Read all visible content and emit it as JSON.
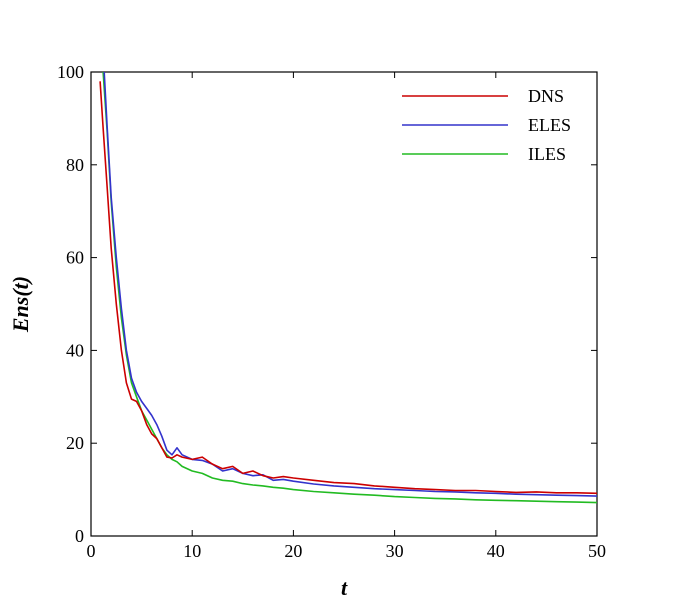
{
  "chart_data": {
    "type": "line",
    "title": "",
    "xlabel": "t",
    "ylabel": "Ens(t)",
    "xlim": [
      0,
      50
    ],
    "ylim": [
      0,
      100
    ],
    "xticks": [
      0,
      10,
      20,
      30,
      40,
      50
    ],
    "yticks": [
      0,
      20,
      40,
      60,
      80,
      100
    ],
    "grid": false,
    "legend_position": "top-right",
    "series": [
      {
        "name": "DNS",
        "color": "#cc0000",
        "x": [
          0.9,
          1.2,
          1.6,
          2.0,
          2.5,
          3.0,
          3.5,
          4.0,
          4.5,
          5.0,
          5.5,
          6.0,
          6.5,
          7.0,
          7.5,
          8.0,
          8.5,
          9.0,
          10.0,
          11.0,
          12.0,
          13.0,
          14.0,
          15.0,
          16.0,
          17.0,
          18.0,
          19.0,
          20.0,
          22.0,
          24.0,
          26.0,
          28.0,
          30.0,
          32.0,
          34.0,
          36.0,
          38.0,
          40.0,
          42.0,
          44.0,
          46.0,
          48.0,
          50.0
        ],
        "values": [
          98,
          88,
          75,
          62,
          50,
          40,
          33,
          29.5,
          29,
          27,
          24,
          22,
          21,
          19,
          17,
          16.8,
          17.5,
          17,
          16.5,
          17,
          15.5,
          14.5,
          15,
          13.5,
          14,
          13,
          12.5,
          12.8,
          12.5,
          12.0,
          11.5,
          11.3,
          10.8,
          10.5,
          10.2,
          10.0,
          9.8,
          9.8,
          9.6,
          9.4,
          9.5,
          9.3,
          9.3,
          9.2
        ]
      },
      {
        "name": "ELES",
        "color": "#3333cc",
        "x": [
          1.3,
          1.6,
          2.0,
          2.5,
          3.0,
          3.5,
          4.0,
          4.5,
          5.0,
          5.5,
          6.0,
          6.5,
          7.0,
          7.5,
          8.0,
          8.5,
          9.0,
          10.0,
          11.0,
          12.0,
          13.0,
          14.0,
          15.0,
          16.0,
          17.0,
          18.0,
          19.0,
          20.0,
          22.0,
          24.0,
          26.0,
          28.0,
          30.0,
          32.0,
          34.0,
          36.0,
          38.0,
          40.0,
          42.0,
          44.0,
          46.0,
          48.0,
          50.0
        ],
        "values": [
          100,
          88,
          73,
          60,
          49,
          40,
          34,
          31,
          29,
          27.5,
          26,
          24,
          21.5,
          18.5,
          17.5,
          19,
          17.5,
          16.5,
          16.3,
          15.5,
          14,
          14.5,
          13.5,
          13,
          13.2,
          12,
          12.2,
          11.8,
          11.2,
          10.8,
          10.5,
          10.2,
          10.0,
          9.8,
          9.6,
          9.5,
          9.3,
          9.2,
          9.0,
          8.9,
          8.8,
          8.7,
          8.6
        ]
      },
      {
        "name": "ILES",
        "color": "#22bb22",
        "x": [
          1.2,
          1.6,
          2.0,
          2.5,
          3.0,
          3.5,
          4.0,
          4.5,
          5.0,
          5.5,
          6.0,
          6.5,
          7.0,
          7.5,
          8.0,
          8.5,
          9.0,
          10.0,
          11.0,
          12.0,
          13.0,
          14.0,
          15.0,
          16.0,
          17.0,
          18.0,
          19.0,
          20.0,
          22.0,
          24.0,
          26.0,
          28.0,
          30.0,
          32.0,
          34.0,
          36.0,
          38.0,
          40.0,
          42.0,
          44.0,
          46.0,
          48.0,
          50.0
        ],
        "values": [
          100,
          87,
          72,
          58,
          47,
          39,
          33,
          30,
          27,
          25,
          23,
          21,
          19,
          17.5,
          16.5,
          16,
          15,
          14,
          13.5,
          12.5,
          12.0,
          11.8,
          11.3,
          11.0,
          10.8,
          10.5,
          10.3,
          10.0,
          9.6,
          9.3,
          9.0,
          8.8,
          8.5,
          8.3,
          8.1,
          8.0,
          7.8,
          7.7,
          7.6,
          7.5,
          7.4,
          7.3,
          7.2
        ]
      }
    ]
  }
}
